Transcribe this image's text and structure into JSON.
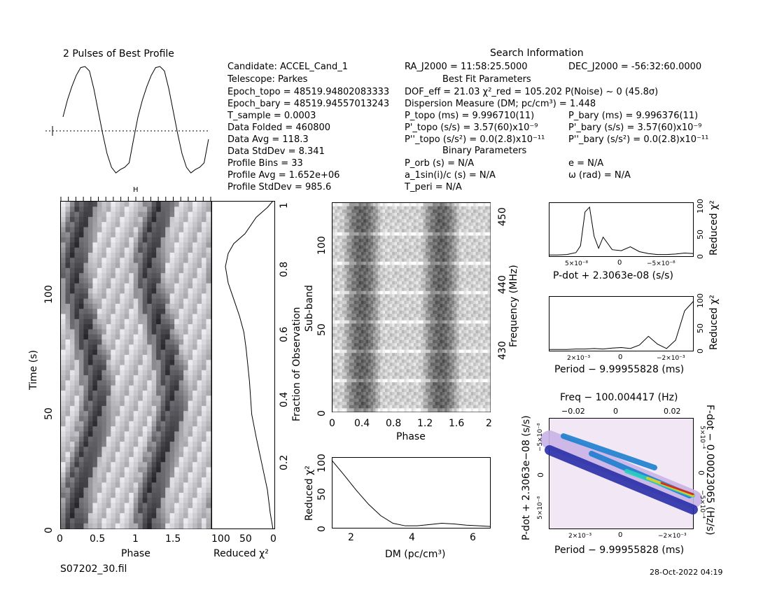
{
  "header": {
    "profile_title": "2 Pulses of Best Profile",
    "search_info_title": "Search Information",
    "best_fit_title": "Best Fit Parameters",
    "binary_title": "Binary Parameters"
  },
  "info_left": [
    "Candidate:  ACCEL_Cand_1",
    "Telescope:  Parkes",
    "Epoch_topo = 48519.94802083333",
    "Epoch_bary = 48519.94557013243",
    "T_sample        =  0.0003",
    "Data Folded     =  460800",
    "Data Avg        =  118.3",
    "Data StdDev     =  8.341",
    "Profile Bins    =  33",
    "Profile Avg     =  1.652e+06",
    "Profile StdDev  =  985.6"
  ],
  "info_mid": [
    "RA_J2000 = 11:58:25.5000",
    "DOF_eff = 21.03  χ²_red = 105.202  P(Noise) ~ 0   (45.8σ)",
    "Dispersion Measure (DM; pc/cm³) = 1.448",
    "P_topo (ms) =  9.996710(11)",
    "P'_topo (s/s) =  3.57(60)x10⁻⁹",
    "P''_topo (s/s²) = 0.0(2.8)x10⁻¹¹",
    "P_orb (s) = N/A",
    "a_1sin(i)/c (s) = N/A",
    "T_peri = N/A"
  ],
  "info_right": [
    "DEC_J2000 = -56:32:60.0000",
    "P_bary (ms) =  9.996376(11)",
    "P'_bary (s/s) =  3.57(60)x10⁻⁹",
    "P''_bary (s/s²) = 0.0(2.8)x10⁻¹¹",
    "e = N/A",
    "ω (rad) = N/A"
  ],
  "footer": {
    "filename": "S07202_30.fil",
    "timestamp": "28-Oct-2022 04:19"
  },
  "axes": {
    "time_vs_phase": {
      "xlabel": "Phase",
      "ylabel": "Time (s)",
      "xticks": [
        "0",
        "0.5",
        "1",
        "1.5"
      ],
      "yticks": [
        "0",
        "50",
        "100"
      ]
    },
    "time_chi2": {
      "xlabel": "Reduced χ²",
      "xticks": [
        "100",
        "50",
        "0"
      ],
      "ylabel_right": "Fraction of Observation",
      "yticks": [
        "0.2",
        "0.4",
        "0.6",
        "0.8",
        "1"
      ]
    },
    "subband": {
      "xlabel": "Phase",
      "ylabel": "Sub-band",
      "xticks": [
        "0",
        "0.4",
        "0.8",
        "1.2",
        "1.6",
        "2"
      ],
      "yticks": [
        "0",
        "50",
        "100"
      ],
      "ylabel_right": "Frequency (MHz)",
      "yticks_right": [
        "430",
        "440",
        "450"
      ]
    },
    "dm_chi2": {
      "xlabel": "DM (pc/cm³)",
      "ylabel": "Reduced χ²",
      "xticks": [
        "2",
        "4",
        "6"
      ],
      "yticks": [
        "0",
        "50",
        "100"
      ]
    },
    "pdot_chi2": {
      "xlabel": "P-dot + 2.3063e-08 (s/s)",
      "ylabel": "Reduced χ²",
      "xticks": [
        "5×10⁻⁸",
        "0",
        "−5×10⁻⁸"
      ],
      "yticks": [
        "0",
        "50",
        "100"
      ]
    },
    "period_chi2": {
      "xlabel": "Period − 9.99955828 (ms)",
      "ylabel": "Reduced χ²",
      "xticks": [
        "2×10⁻³",
        "0",
        "−2×10⁻³"
      ],
      "yticks": [
        "0",
        "50",
        "100"
      ]
    },
    "ppdot": {
      "title": "Freq − 100.004417 (Hz)",
      "top_ticks": [
        "−0.02",
        "0",
        "0.02"
      ],
      "xlabel": "Period − 9.99955828 (ms)",
      "xticks": [
        "2×10⁻³",
        "0",
        "−2×10⁻³"
      ],
      "ylabel": "P-dot + 2.3063e−08 (s/s)",
      "yticks": [
        "5×10⁻⁸",
        "0",
        "−5×10⁻⁸"
      ],
      "ylabel_right": "F-dot − 0.00023065 (Hz/s)",
      "yticks_right": [
        "5×10⁻⁴",
        "0",
        "−5×10⁻⁴"
      ]
    }
  },
  "chart_data": [
    {
      "type": "line",
      "name": "profile",
      "x": [
        0,
        0.06,
        0.12,
        0.18,
        0.24,
        0.3,
        0.36,
        0.42,
        0.48,
        0.54,
        0.6,
        0.66,
        0.72,
        0.78,
        0.84,
        0.9,
        0.96,
        1.02,
        1.08,
        1.14,
        1.2,
        1.26,
        1.32,
        1.38,
        1.44,
        1.5,
        1.56,
        1.62,
        1.68,
        1.74,
        1.8,
        1.86,
        1.92,
        1.98
      ],
      "y": [
        0.55,
        0.7,
        0.82,
        0.92,
        0.99,
        1.0,
        0.96,
        0.8,
        0.6,
        0.4,
        0.22,
        0.1,
        0.05,
        0.08,
        0.1,
        0.14,
        0.35,
        0.55,
        0.7,
        0.82,
        0.92,
        0.99,
        1.0,
        0.96,
        0.8,
        0.6,
        0.4,
        0.22,
        0.1,
        0.05,
        0.08,
        0.1,
        0.14,
        0.35
      ]
    },
    {
      "type": "line",
      "name": "time_chi2",
      "x": [
        0,
        10,
        30,
        50,
        70,
        80,
        85,
        80,
        70,
        60,
        52,
        48,
        45,
        42,
        40,
        38,
        30,
        20,
        10,
        5,
        0
      ],
      "y": [
        1.0,
        0.98,
        0.95,
        0.9,
        0.87,
        0.84,
        0.8,
        0.75,
        0.7,
        0.65,
        0.6,
        0.55,
        0.5,
        0.45,
        0.4,
        0.35,
        0.28,
        0.2,
        0.12,
        0.05,
        0
      ]
    },
    {
      "type": "line",
      "name": "dm_chi2",
      "x": [
        1.4,
        1.8,
        2.2,
        2.6,
        3.0,
        3.4,
        3.8,
        4.2,
        4.6,
        5.0,
        5.4,
        5.8,
        6.2,
        6.6
      ],
      "y": [
        105,
        82,
        58,
        36,
        18,
        6,
        2,
        2,
        4,
        6,
        5,
        3,
        2,
        1
      ]
    },
    {
      "type": "line",
      "name": "pdot_chi2",
      "x": [
        -8,
        -7,
        -6,
        -5,
        -4.5,
        -4,
        -3.5,
        -3,
        -2.5,
        -2,
        -1,
        0,
        1,
        2,
        3,
        4,
        5,
        6,
        7,
        8
      ],
      "y": [
        1,
        1,
        2,
        6,
        20,
        90,
        100,
        40,
        15,
        38,
        12,
        10,
        18,
        8,
        4,
        2,
        2,
        3,
        5,
        4
      ]
    },
    {
      "type": "line",
      "name": "period_chi2",
      "x": [
        -4,
        -3.5,
        -3,
        -2.5,
        -2,
        -1.5,
        -1,
        -0.5,
        0,
        0.5,
        1,
        1.5,
        2,
        2.5,
        3,
        3.5,
        4
      ],
      "y": [
        1,
        1,
        1,
        2,
        2,
        3,
        2,
        4,
        5,
        3,
        10,
        28,
        12,
        3,
        20,
        80,
        100
      ]
    }
  ]
}
